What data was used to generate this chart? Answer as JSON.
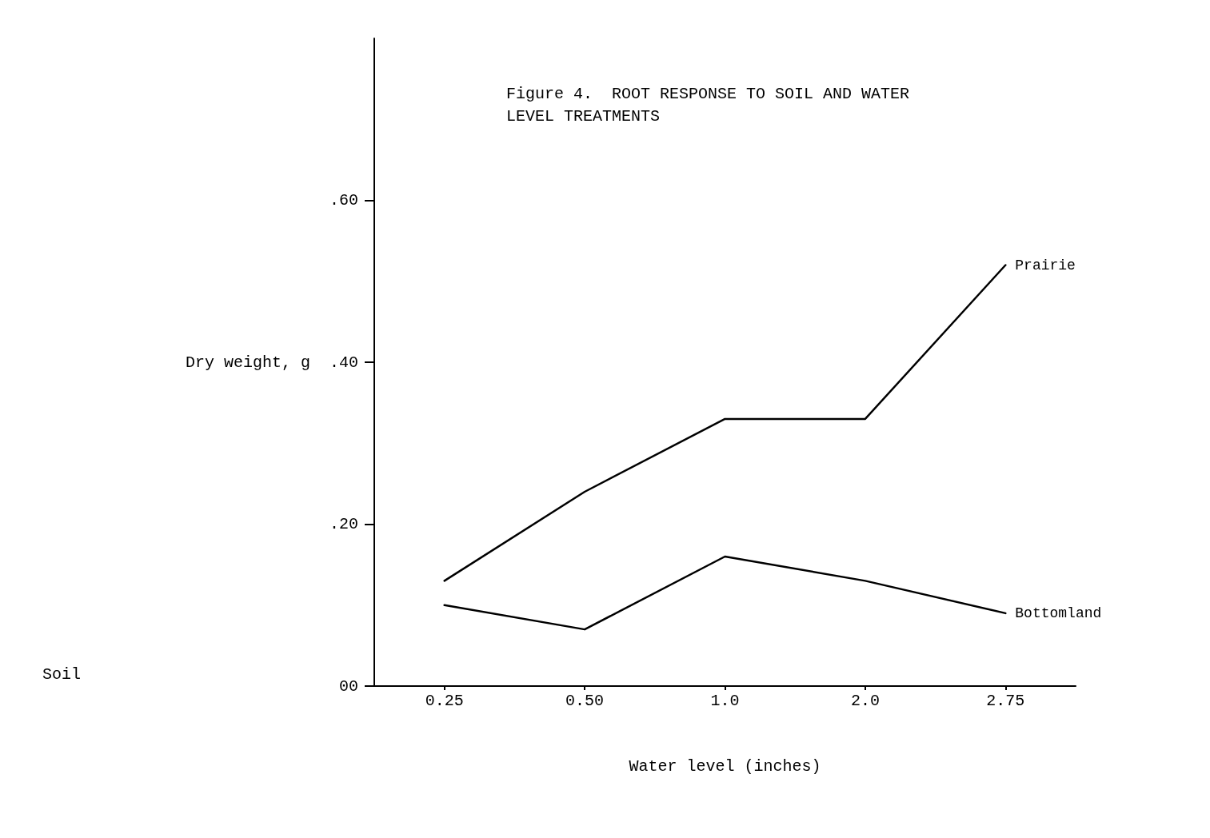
{
  "chart_data": {
    "type": "line",
    "title": "Figure 4.  ROOT RESPONSE TO SOIL AND WATER\nLEVEL TREATMENTS",
    "xlabel": "Water level (inches)",
    "ylabel": "Dry weight, g",
    "legend_title": "Soil",
    "categories": [
      "0.25",
      "0.50",
      "1.0",
      "2.0",
      "2.75"
    ],
    "series": [
      {
        "name": "Prairie",
        "color": "#000000",
        "values": [
          0.13,
          0.24,
          0.33,
          0.33,
          0.52
        ]
      },
      {
        "name": "Bottomland",
        "color": "#000000",
        "values": [
          0.1,
          0.07,
          0.16,
          0.13,
          0.09
        ]
      }
    ],
    "ylim": [
      0,
      0.8
    ],
    "yticks": [
      {
        "value": 0,
        "label": "00"
      },
      {
        "value": 0.2,
        "label": ".20"
      },
      {
        "value": 0.4,
        "label": ".40"
      },
      {
        "value": 0.6,
        "label": ".60"
      }
    ],
    "grid": false,
    "legend": false,
    "marker": "none",
    "line_style": "solid"
  }
}
